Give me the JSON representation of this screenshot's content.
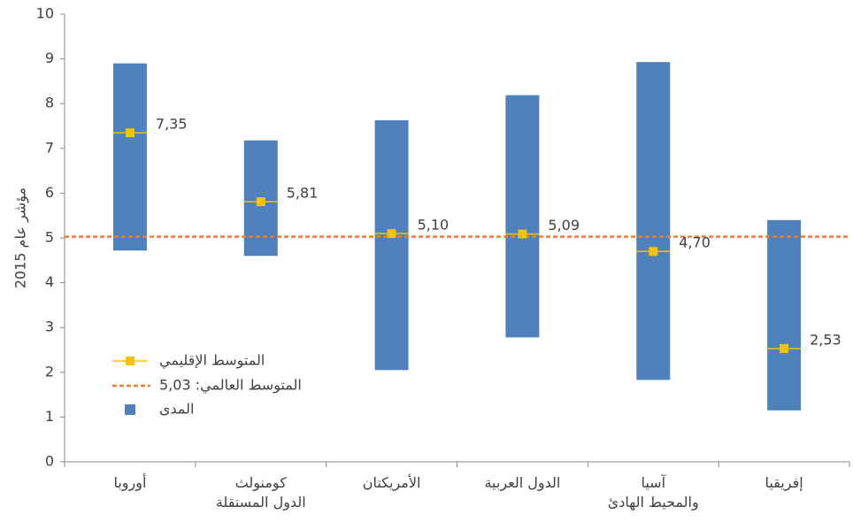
{
  "chart_data": {
    "type": "range",
    "y_label": "مؤشر عام 2015",
    "categories": [
      "أوروبا",
      "كومنولث\nالدول المستقلة",
      "الأمريكتان",
      "الدول العربية",
      "آسيا\nوالمحيط الهادئ",
      "إفريقيا"
    ],
    "series": [
      {
        "name": "المتوسط الإقليمي",
        "color": "#f5c400",
        "values": [
          7.35,
          5.81,
          5.1,
          5.09,
          4.7,
          2.53
        ],
        "value_labels": [
          "7,35",
          "5,81",
          "5,10",
          "5,09",
          "4,70",
          "2,53"
        ]
      },
      {
        "name": "المدى",
        "color": "#4f81bd",
        "low": [
          4.72,
          4.6,
          2.05,
          2.78,
          1.83,
          1.15
        ],
        "high": [
          8.9,
          7.18,
          7.63,
          8.19,
          8.93,
          5.4
        ]
      }
    ],
    "reference_line": {
      "name": "المتوسط العالمي: 5,03",
      "value": 5.03,
      "color": "#ed7d31"
    },
    "ylim": [
      0,
      10
    ],
    "yticks": [
      0,
      1,
      2,
      3,
      4,
      5,
      6,
      7,
      8,
      9,
      10
    ]
  }
}
